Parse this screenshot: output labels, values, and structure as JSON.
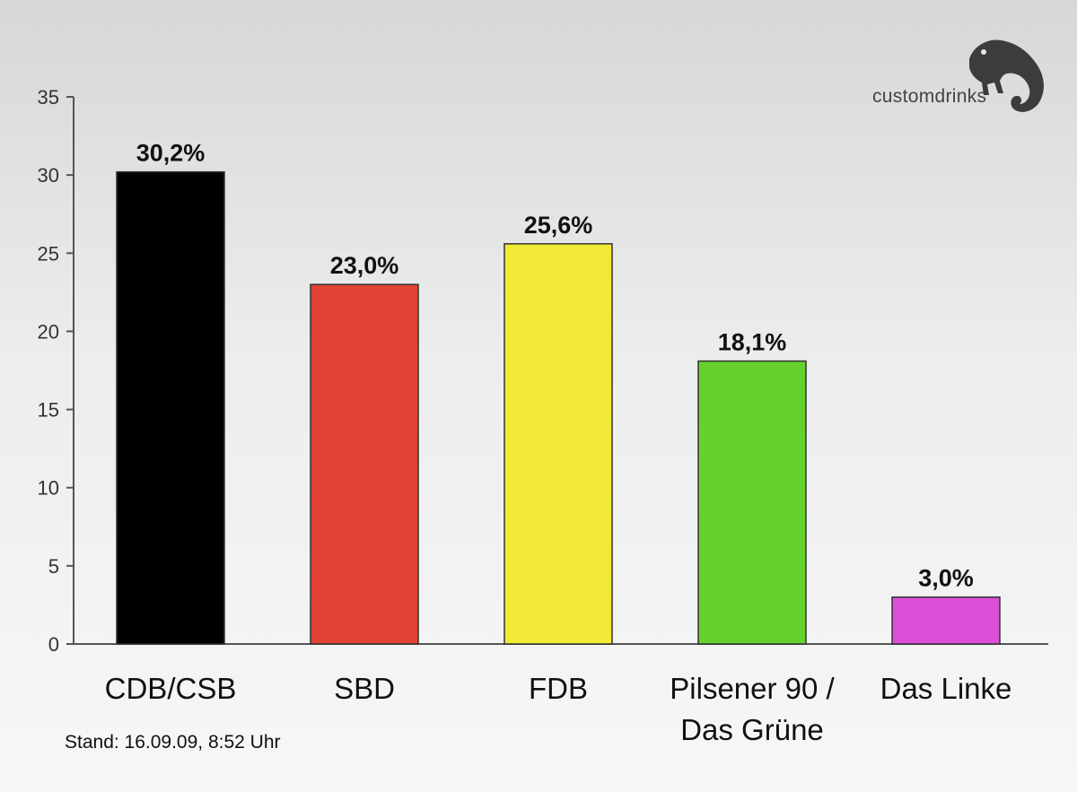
{
  "logo": {
    "text": "customdrinks",
    "icon": "chameleon-icon"
  },
  "footnote": "Stand: 16.09.09, 8:52 Uhr",
  "chart_data": {
    "type": "bar",
    "categories": [
      {
        "lines": [
          "CDB/CSB"
        ]
      },
      {
        "lines": [
          "SBD"
        ]
      },
      {
        "lines": [
          "FDB"
        ]
      },
      {
        "lines": [
          "Pilsener 90 /",
          "Das Grüne"
        ]
      },
      {
        "lines": [
          "Das Linke"
        ]
      }
    ],
    "values": [
      30.2,
      23.0,
      25.6,
      18.1,
      3.0
    ],
    "value_labels": [
      "30,2%",
      "23,0%",
      "25,6%",
      "18,1%",
      "3,0%"
    ],
    "colors": [
      "#000000",
      "#e14234",
      "#f2e936",
      "#66d12e",
      "#dd4ed8"
    ],
    "ylim": [
      0,
      35
    ],
    "yticks": [
      0,
      5,
      10,
      15,
      20,
      25,
      30,
      35
    ],
    "title": "",
    "xlabel": "",
    "ylabel": "",
    "grid": false
  }
}
